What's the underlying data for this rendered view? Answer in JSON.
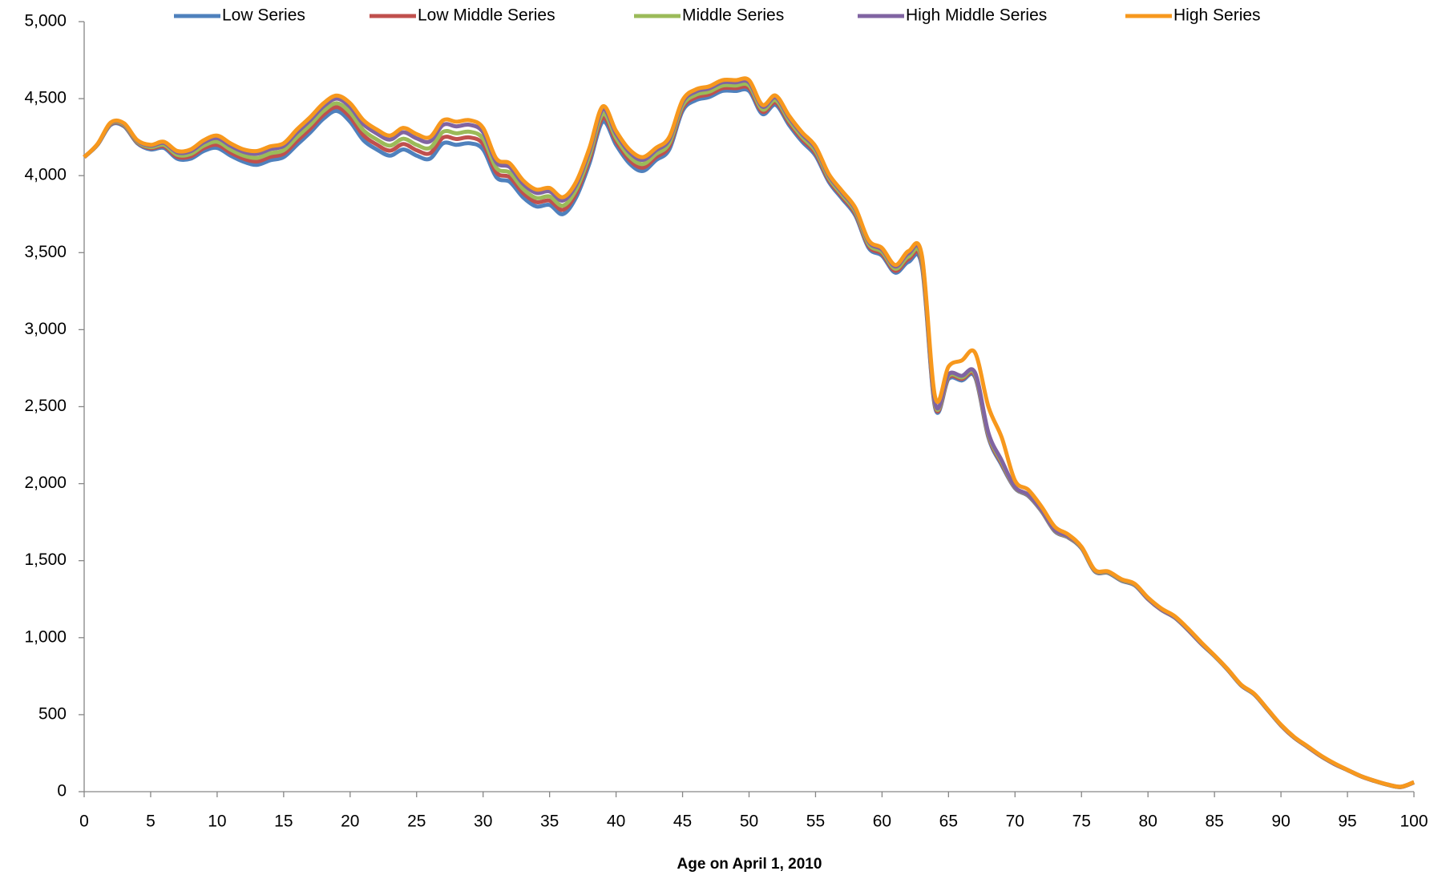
{
  "chart_data": {
    "type": "line",
    "x_label": "Age on April 1, 2010",
    "x": [
      0,
      1,
      2,
      3,
      4,
      5,
      6,
      7,
      8,
      9,
      10,
      11,
      12,
      13,
      14,
      15,
      16,
      17,
      18,
      19,
      20,
      21,
      22,
      23,
      24,
      25,
      26,
      27,
      28,
      29,
      30,
      31,
      32,
      33,
      34,
      35,
      36,
      37,
      38,
      39,
      40,
      41,
      42,
      43,
      44,
      45,
      46,
      47,
      48,
      49,
      50,
      51,
      52,
      53,
      54,
      55,
      56,
      57,
      58,
      59,
      60,
      61,
      62,
      63,
      64,
      65,
      66,
      67,
      68,
      69,
      70,
      71,
      72,
      73,
      74,
      75,
      76,
      77,
      78,
      79,
      80,
      81,
      82,
      83,
      84,
      85,
      86,
      87,
      88,
      89,
      90,
      91,
      92,
      93,
      94,
      95,
      96,
      97,
      98,
      99,
      100
    ],
    "xlim": [
      0,
      100
    ],
    "xticks": [
      0,
      5,
      10,
      15,
      20,
      25,
      30,
      35,
      40,
      45,
      50,
      55,
      60,
      65,
      70,
      75,
      80,
      85,
      90,
      95,
      100
    ],
    "ylim": [
      0,
      5000
    ],
    "yticks": [
      0,
      500,
      {
        "value": 1000,
        "label": "1,000"
      },
      {
        "value": 1500,
        "label": "1,500"
      },
      {
        "value": 2000,
        "label": "2,000"
      },
      {
        "value": 2500,
        "label": "2,500"
      },
      {
        "value": 3000,
        "label": "3,000"
      },
      {
        "value": 3500,
        "label": "3,500"
      },
      {
        "value": 4000,
        "label": "4,000"
      },
      {
        "value": 4500,
        "label": "4,500"
      },
      {
        "value": 5000,
        "label": "5,000"
      }
    ],
    "grid": false,
    "legend": "top",
    "series": [
      {
        "name": "Low Series",
        "color": "#4f81bd",
        "values": [
          4120,
          4200,
          4330,
          4320,
          4210,
          4170,
          4180,
          4110,
          4110,
          4160,
          4180,
          4130,
          4090,
          4070,
          4100,
          4120,
          4200,
          4280,
          4370,
          4420,
          4350,
          4230,
          4170,
          4130,
          4170,
          4130,
          4110,
          4210,
          4200,
          4210,
          4170,
          3990,
          3960,
          3860,
          3800,
          3810,
          3750,
          3860,
          4080,
          4350,
          4200,
          4080,
          4030,
          4100,
          4170,
          4420,
          4490,
          4510,
          4550,
          4550,
          4550,
          4400,
          4460,
          4330,
          4220,
          4130,
          3960,
          3850,
          3740,
          3530,
          3480,
          3370,
          3440,
          3410,
          2490,
          2680,
          2670,
          2690,
          2300,
          2120,
          1970,
          1920,
          1820,
          1690,
          1650,
          1580,
          1430,
          1420,
          1370,
          1340,
          1250,
          1180,
          1130,
          1050,
          960,
          880,
          790,
          690,
          630,
          530,
          430,
          350,
          290,
          230,
          180,
          140,
          100,
          70,
          45,
          30,
          60
        ]
      },
      {
        "name": "Low Middle Series",
        "color": "#c0504d",
        "values": [
          4120,
          4201,
          4334,
          4325,
          4215,
          4178,
          4190,
          4122,
          4125,
          4178,
          4200,
          4150,
          4110,
          4092,
          4122,
          4142,
          4225,
          4305,
          4395,
          4445,
          4380,
          4262,
          4202,
          4162,
          4205,
          4165,
          4145,
          4248,
          4238,
          4248,
          4205,
          4020,
          3990,
          3888,
          3828,
          3838,
          3778,
          3885,
          4105,
          4375,
          4222,
          4102,
          4052,
          4120,
          4190,
          4438,
          4508,
          4528,
          4568,
          4568,
          4568,
          4415,
          4475,
          4345,
          4235,
          4145,
          3972,
          3862,
          3752,
          3542,
          3492,
          3382,
          3458,
          3428,
          2500,
          2690,
          2680,
          2700,
          2310,
          2130,
          1973,
          1923,
          1823,
          1693,
          1653,
          1583,
          1433,
          1423,
          1373,
          1343,
          1252,
          1182,
          1132,
          1052,
          962,
          882,
          792,
          692,
          632,
          532,
          430,
          350,
          290,
          230,
          180,
          140,
          100,
          70,
          45,
          30,
          60
        ]
      },
      {
        "name": "Middle Series",
        "color": "#9bbb59",
        "values": [
          4120,
          4202,
          4338,
          4330,
          4220,
          4185,
          4200,
          4135,
          4140,
          4195,
          4220,
          4170,
          4130,
          4115,
          4145,
          4165,
          4250,
          4330,
          4420,
          4470,
          4410,
          4295,
          4235,
          4195,
          4240,
          4200,
          4180,
          4285,
          4275,
          4285,
          4240,
          4050,
          4020,
          3915,
          3855,
          3865,
          3805,
          3910,
          4130,
          4400,
          4245,
          4125,
          4075,
          4140,
          4210,
          4455,
          4525,
          4545,
          4585,
          4585,
          4585,
          4430,
          4490,
          4360,
          4250,
          4160,
          3985,
          3875,
          3765,
          3555,
          3505,
          3395,
          3475,
          3445,
          2510,
          2700,
          2690,
          2710,
          2320,
          2140,
          1975,
          1925,
          1825,
          1695,
          1655,
          1585,
          1435,
          1425,
          1375,
          1345,
          1253,
          1183,
          1133,
          1053,
          963,
          883,
          793,
          693,
          633,
          533,
          431,
          351,
          291,
          231,
          181,
          141,
          101,
          71,
          46,
          31,
          61
        ]
      },
      {
        "name": "High Middle Series",
        "color": "#8064a2",
        "values": [
          4120,
          4204,
          4342,
          4336,
          4226,
          4194,
          4212,
          4150,
          4158,
          4216,
          4244,
          4194,
          4154,
          4142,
          4172,
          4192,
          4280,
          4360,
          4450,
          4500,
          4446,
          4334,
          4274,
          4234,
          4282,
          4242,
          4222,
          4330,
          4320,
          4330,
          4282,
          4086,
          4056,
          3948,
          3888,
          3898,
          3838,
          3940,
          4160,
          4430,
          4272,
          4152,
          4102,
          4164,
          4234,
          4476,
          4546,
          4566,
          4606,
          4606,
          4606,
          4448,
          4508,
          4378,
          4268,
          4178,
          4000,
          3890,
          3780,
          3570,
          3520,
          3410,
          3496,
          3466,
          2520,
          2710,
          2700,
          2720,
          2330,
          2150,
          1978,
          1928,
          1828,
          1698,
          1658,
          1588,
          1438,
          1428,
          1378,
          1348,
          1254,
          1184,
          1134,
          1054,
          964,
          884,
          794,
          694,
          634,
          534,
          432,
          352,
          292,
          232,
          182,
          142,
          102,
          72,
          47,
          32,
          62
        ]
      },
      {
        "name": "High Series",
        "color": "#f7981d",
        "values": [
          4120,
          4205,
          4345,
          4340,
          4230,
          4200,
          4220,
          4160,
          4170,
          4230,
          4260,
          4210,
          4170,
          4160,
          4190,
          4210,
          4300,
          4380,
          4470,
          4520,
          4470,
          4360,
          4300,
          4260,
          4310,
          4270,
          4250,
          4360,
          4350,
          4360,
          4310,
          4110,
          4080,
          3970,
          3910,
          3920,
          3860,
          3960,
          4180,
          4450,
          4290,
          4170,
          4120,
          4180,
          4250,
          4490,
          4560,
          4580,
          4620,
          4620,
          4620,
          4460,
          4520,
          4390,
          4280,
          4190,
          4010,
          3900,
          3790,
          3580,
          3530,
          3420,
          3510,
          3480,
          2560,
          2760,
          2800,
          2850,
          2500,
          2300,
          2020,
          1960,
          1850,
          1720,
          1670,
          1590,
          1440,
          1430,
          1380,
          1350,
          1260,
          1190,
          1140,
          1060,
          970,
          885,
          795,
          695,
          635,
          535,
          435,
          355,
          295,
          235,
          185,
          142,
          102,
          72,
          47,
          32,
          62
        ]
      }
    ]
  }
}
